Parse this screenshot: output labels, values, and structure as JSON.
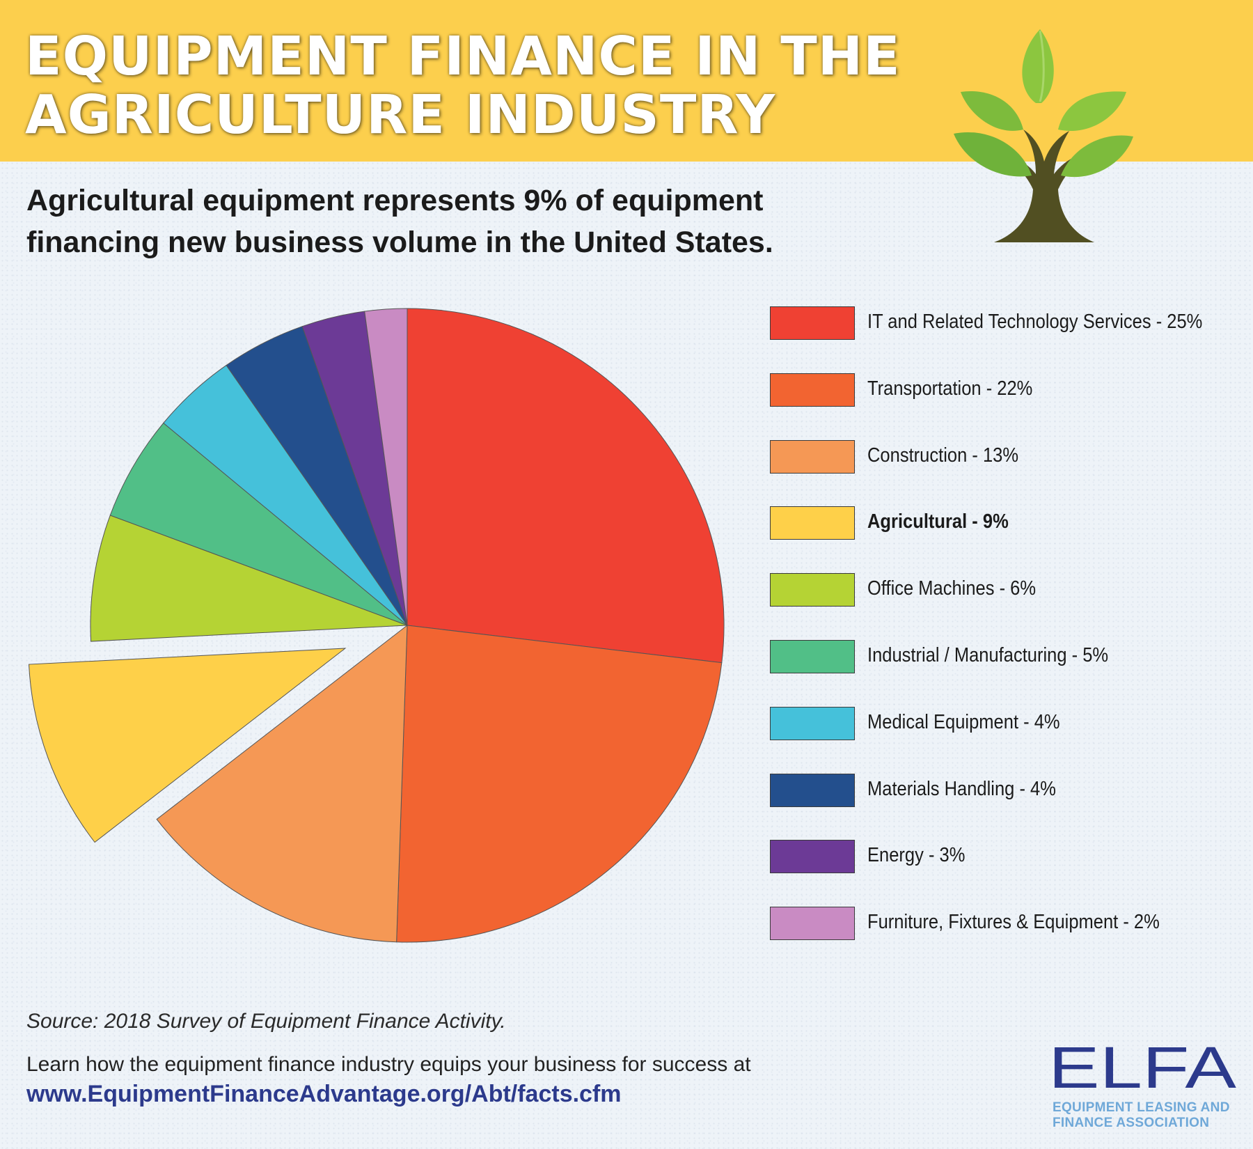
{
  "header": {
    "title_line1": "EQUIPMENT FINANCE IN THE",
    "title_line2": "AGRICULTURE INDUSTRY"
  },
  "subtitle_line1": "Agricultural equipment represents 9% of equipment",
  "subtitle_line2": "financing new business volume in the United States.",
  "chart_data": {
    "type": "pie",
    "title": "",
    "legend_placement": "right",
    "exploded_slice": "Agricultural",
    "slices": [
      {
        "label": "IT and Related Technology Services",
        "display": "IT and Related Technology Services - 25%",
        "value": 25,
        "color": "#ef4133"
      },
      {
        "label": "Transportation",
        "display": "Transportation - 22%",
        "value": 22,
        "color": "#f26431"
      },
      {
        "label": "Construction",
        "display": "Construction - 13%",
        "value": 13,
        "color": "#f59855"
      },
      {
        "label": "Agricultural",
        "display": "Agricultural - 9%",
        "value": 9,
        "color": "#fed049"
      },
      {
        "label": "Office Machines",
        "display": "Office Machines - 6%",
        "value": 6,
        "color": "#b5d334"
      },
      {
        "label": "Industrial / Manufacturing",
        "display": "Industrial / Manufacturing - 5%",
        "value": 5,
        "color": "#51bf87"
      },
      {
        "label": "Medical Equipment",
        "display": "Medical Equipment - 4%",
        "value": 4,
        "color": "#45c1da"
      },
      {
        "label": "Materials Handling",
        "display": "Materials Handling - 4%",
        "value": 4,
        "color": "#234f8d"
      },
      {
        "label": "Energy",
        "display": "Energy - 3%",
        "value": 3,
        "color": "#6c3a96"
      },
      {
        "label": "Furniture, Fixtures & Equipment",
        "display": "Furniture, Fixtures & Equipment - 2%",
        "value": 2,
        "color": "#c98bc3"
      }
    ]
  },
  "footer": {
    "source": "Source: 2018 Survey of Equipment Finance Activity.",
    "learn": "Learn how the equipment finance industry equips your business for success at",
    "url": "www.EquipmentFinanceAdvantage.org/Abt/facts.cfm"
  },
  "logo": {
    "wordmark": "ELFA",
    "tag_line1": "EQUIPMENT LEASING AND",
    "tag_line2": "FINANCE ASSOCIATION",
    "color": "#2c3a8c",
    "accent": "#6fa8d8"
  },
  "icons": {
    "tree": "tree-icon"
  }
}
